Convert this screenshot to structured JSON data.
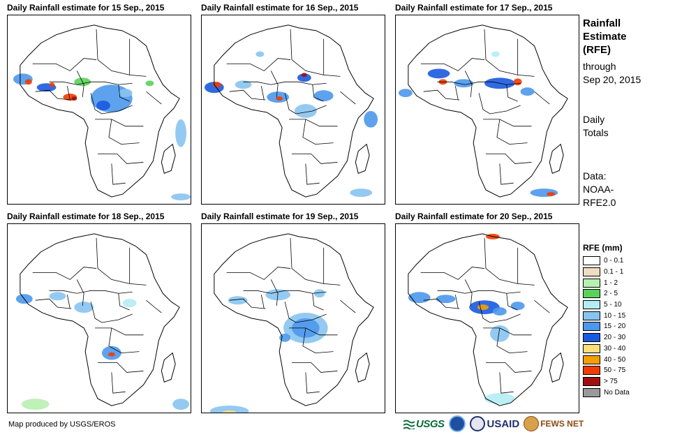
{
  "panels": [
    {
      "title": "Daily Rainfall estimate for 15 Sep., 2015"
    },
    {
      "title": "Daily Rainfall estimate for 16 Sep., 2015"
    },
    {
      "title": "Daily Rainfall estimate for 17 Sep., 2015"
    },
    {
      "title": "Daily Rainfall estimate for 18 Sep., 2015"
    },
    {
      "title": "Daily Rainfall estimate for 19 Sep., 2015"
    },
    {
      "title": "Daily Rainfall estimate for 20 Sep., 2015"
    }
  ],
  "side": {
    "title_line1": "Rainfall",
    "title_line2": "Estimate",
    "title_line3": "(RFE)",
    "through_label": "through",
    "through_date": "Sep 20, 2015",
    "totals_line1": "Daily",
    "totals_line2": "Totals",
    "data_line1": "Data:",
    "data_line2": "NOAA-",
    "data_line3": "RFE2.0"
  },
  "legend": {
    "title": "RFE (mm)",
    "classes": [
      {
        "label": "0 - 0.1",
        "color": "#ffffff"
      },
      {
        "label": "0.1 - 1",
        "color": "#f0dcc0"
      },
      {
        "label": "1 - 2",
        "color": "#b8f0b0"
      },
      {
        "label": "2 - 5",
        "color": "#5ad25a"
      },
      {
        "label": "5 - 10",
        "color": "#b4ecf4"
      },
      {
        "label": "10 - 15",
        "color": "#88c4f0"
      },
      {
        "label": "15 - 20",
        "color": "#4c98ec"
      },
      {
        "label": "20 - 30",
        "color": "#1a5ae0"
      },
      {
        "label": "30 - 40",
        "color": "#fce07c"
      },
      {
        "label": "40 - 50",
        "color": "#f4a000"
      },
      {
        "label": "50 - 75",
        "color": "#f03c00"
      },
      {
        "label": "> 75",
        "color": "#a01010"
      },
      {
        "label": "No Data",
        "color": "#999999"
      }
    ]
  },
  "footer": {
    "credit": "Map produced by USGS/EROS",
    "logos": {
      "usgs": "USGS",
      "usaid": "USAID",
      "fews": "FEWS NET"
    }
  }
}
